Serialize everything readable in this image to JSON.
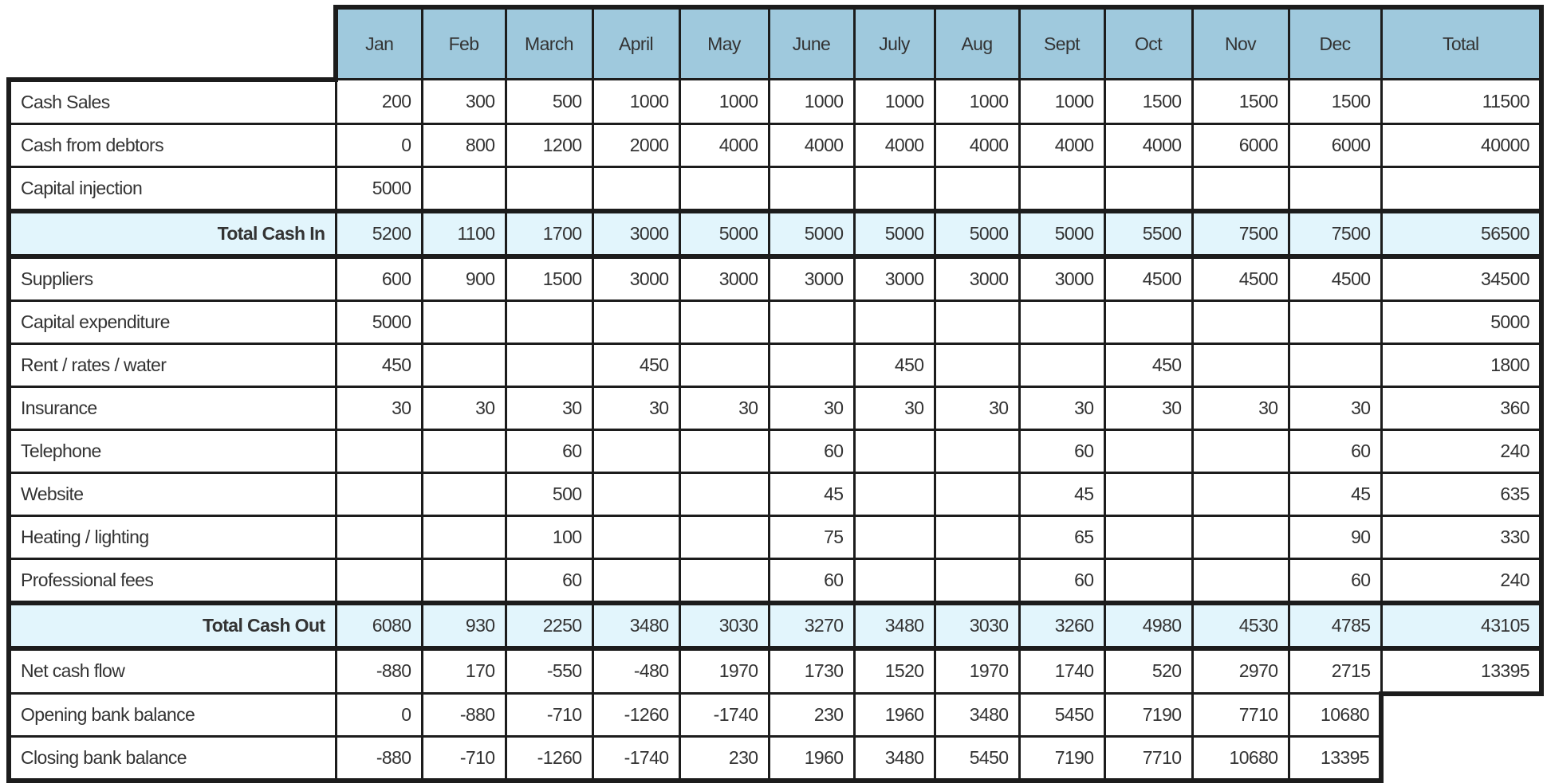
{
  "colors": {
    "header_bg": "#9fc9dd",
    "total_bg": "#e2f5fc",
    "border": "#1c1c1c"
  },
  "columns": [
    "Jan",
    "Feb",
    "March",
    "April",
    "May",
    "June",
    "July",
    "Aug",
    "Sept",
    "Oct",
    "Nov",
    "Dec",
    "Total"
  ],
  "rows": [
    {
      "label": "Cash Sales",
      "type": "normal",
      "values": [
        "200",
        "300",
        "500",
        "1000",
        "1000",
        "1000",
        "1000",
        "1000",
        "1000",
        "1500",
        "1500",
        "1500",
        "11500"
      ]
    },
    {
      "label": "Cash from debtors",
      "type": "normal",
      "values": [
        "0",
        "800",
        "1200",
        "2000",
        "4000",
        "4000",
        "4000",
        "4000",
        "4000",
        "4000",
        "6000",
        "6000",
        "40000"
      ]
    },
    {
      "label": "Capital injection",
      "type": "normal",
      "values": [
        "5000",
        "",
        "",
        "",
        "",
        "",
        "",
        "",
        "",
        "",
        "",
        "",
        ""
      ]
    },
    {
      "label": "Total Cash In",
      "type": "total",
      "values": [
        "5200",
        "1100",
        "1700",
        "3000",
        "5000",
        "5000",
        "5000",
        "5000",
        "5000",
        "5500",
        "7500",
        "7500",
        "56500"
      ]
    },
    {
      "label": "Suppliers",
      "type": "normal",
      "values": [
        "600",
        "900",
        "1500",
        "3000",
        "3000",
        "3000",
        "3000",
        "3000",
        "3000",
        "4500",
        "4500",
        "4500",
        "34500"
      ]
    },
    {
      "label": "Capital expenditure",
      "type": "normal",
      "values": [
        "5000",
        "",
        "",
        "",
        "",
        "",
        "",
        "",
        "",
        "",
        "",
        "",
        "5000"
      ]
    },
    {
      "label": "Rent / rates / water",
      "type": "normal",
      "values": [
        "450",
        "",
        "",
        "450",
        "",
        "",
        "450",
        "",
        "",
        "450",
        "",
        "",
        "1800"
      ]
    },
    {
      "label": "Insurance",
      "type": "normal",
      "values": [
        "30",
        "30",
        "30",
        "30",
        "30",
        "30",
        "30",
        "30",
        "30",
        "30",
        "30",
        "30",
        "360"
      ]
    },
    {
      "label": "Telephone",
      "type": "normal",
      "values": [
        "",
        "",
        "60",
        "",
        "",
        "60",
        "",
        "",
        "60",
        "",
        "",
        "60",
        "240"
      ]
    },
    {
      "label": "Website",
      "type": "normal",
      "values": [
        "",
        "",
        "500",
        "",
        "",
        "45",
        "",
        "",
        "45",
        "",
        "",
        "45",
        "635"
      ]
    },
    {
      "label": "Heating / lighting",
      "type": "normal",
      "values": [
        "",
        "",
        "100",
        "",
        "",
        "75",
        "",
        "",
        "65",
        "",
        "",
        "90",
        "330"
      ]
    },
    {
      "label": "Professional fees",
      "type": "normal",
      "values": [
        "",
        "",
        "60",
        "",
        "",
        "60",
        "",
        "",
        "60",
        "",
        "",
        "60",
        "240"
      ]
    },
    {
      "label": "Total Cash Out",
      "type": "total",
      "values": [
        "6080",
        "930",
        "2250",
        "3480",
        "3030",
        "3270",
        "3480",
        "3030",
        "3260",
        "4980",
        "4530",
        "4785",
        "43105"
      ]
    },
    {
      "label": "Net cash flow",
      "type": "normal",
      "values": [
        "-880",
        "170",
        "-550",
        "-480",
        "1970",
        "1730",
        "1520",
        "1970",
        "1740",
        "520",
        "2970",
        "2715",
        "13395"
      ]
    },
    {
      "label": "Opening bank balance",
      "type": "notot",
      "values": [
        "0",
        "-880",
        "-710",
        "-1260",
        "-1740",
        "230",
        "1960",
        "3480",
        "5450",
        "7190",
        "7710",
        "10680"
      ]
    },
    {
      "label": "Closing bank balance",
      "type": "notot",
      "values": [
        "-880",
        "-710",
        "-1260",
        "-1740",
        "230",
        "1960",
        "3480",
        "5450",
        "7190",
        "7710",
        "10680",
        "13395"
      ]
    }
  ]
}
